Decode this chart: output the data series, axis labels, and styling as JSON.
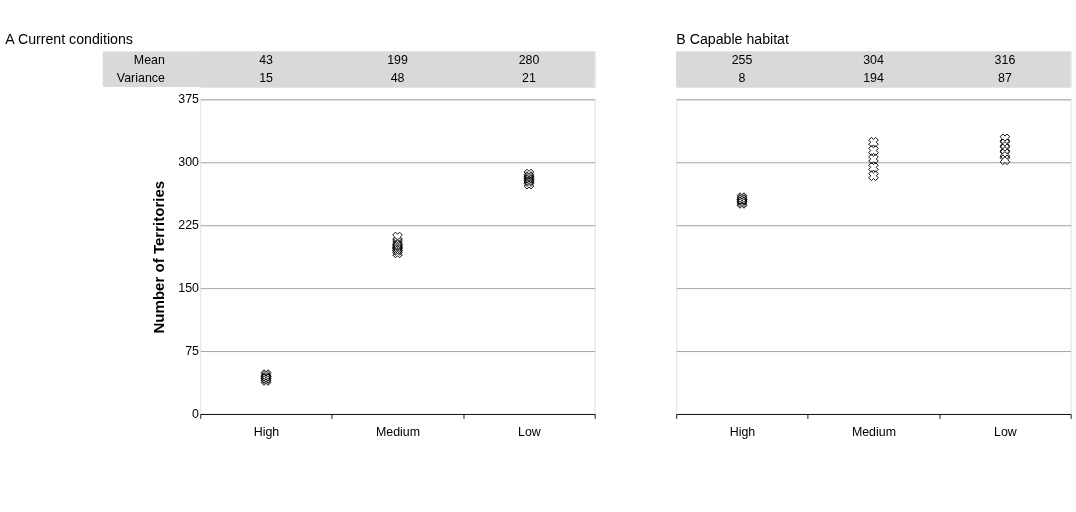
{
  "chart_data": [
    {
      "type": "scatter",
      "title": "A Current conditions",
      "ylabel": "Number of Territories",
      "categories": [
        "High",
        "Medium",
        "Low"
      ],
      "marker": "cross",
      "grid": "y",
      "ylim": [
        0,
        375
      ],
      "yticks": [
        0,
        75,
        150,
        225,
        300,
        375
      ],
      "series": [
        {
          "color": "#000000",
          "x": [
            "High",
            "High",
            "High",
            "High",
            "High",
            "Medium",
            "Medium",
            "Medium",
            "Medium",
            "Medium",
            "Medium",
            "Medium",
            "Low",
            "Low",
            "Low",
            "Low",
            "Low",
            "Low"
          ],
          "values": [
            40,
            42,
            43,
            45,
            47,
            192,
            195,
            197,
            199,
            201,
            204,
            211,
            274,
            277,
            279,
            281,
            283,
            286
          ]
        }
      ],
      "annotations": [
        "Mean",
        "Variance",
        "43",
        "15",
        "199",
        "48",
        "280",
        "21"
      ]
    },
    {
      "type": "scatter",
      "title": "B Capable habitat",
      "categories": [
        "High",
        "Medium",
        "Low"
      ],
      "marker": "cross",
      "grid": "y",
      "ylim": [
        0,
        375
      ],
      "yticks": [
        0,
        75,
        150,
        225,
        300,
        375
      ],
      "tick_labels": "x",
      "series": [
        {
          "color": "#000000",
          "x": [
            "High",
            "High",
            "High",
            "High",
            "High",
            "Medium",
            "Medium",
            "Medium",
            "Medium",
            "Medium",
            "Low",
            "Low",
            "Low",
            "Low",
            "Low"
          ],
          "values": [
            251,
            253,
            255,
            256,
            258,
            284,
            294,
            304,
            314,
            324,
            303,
            310,
            316,
            322,
            328
          ]
        }
      ],
      "annotations": [
        "255",
        "8",
        "304",
        "194",
        "316",
        "87"
      ]
    }
  ]
}
